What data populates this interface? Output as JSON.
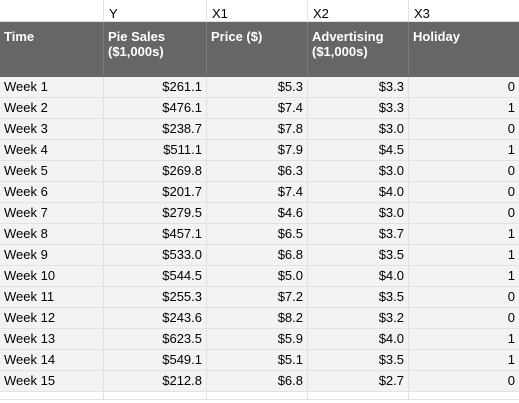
{
  "var_labels": [
    "",
    "Y",
    "X1",
    "X2",
    "X3"
  ],
  "headers": [
    "Time",
    "Pie Sales ($1,000s)",
    "Price ($)",
    "Advertising ($1,000s)",
    "Holiday"
  ],
  "rows": [
    [
      "Week 1",
      "$261.1",
      "$5.3",
      "$3.3",
      "0"
    ],
    [
      "Week 2",
      "$476.1",
      "$7.4",
      "$3.3",
      "1"
    ],
    [
      "Week 3",
      "$238.7",
      "$7.8",
      "$3.0",
      "0"
    ],
    [
      "Week 4",
      "$511.1",
      "$7.9",
      "$4.5",
      "1"
    ],
    [
      "Week 5",
      "$269.8",
      "$6.3",
      "$3.0",
      "0"
    ],
    [
      "Week 6",
      "$201.7",
      "$7.4",
      "$4.0",
      "0"
    ],
    [
      "Week 7",
      "$279.5",
      "$4.6",
      "$3.0",
      "0"
    ],
    [
      "Week 8",
      "$457.1",
      "$6.5",
      "$3.7",
      "1"
    ],
    [
      "Week 9",
      "$533.0",
      "$6.8",
      "$3.5",
      "1"
    ],
    [
      "Week 10",
      "$544.5",
      "$5.0",
      "$4.0",
      "1"
    ],
    [
      "Week 11",
      "$255.3",
      "$7.2",
      "$3.5",
      "0"
    ],
    [
      "Week 12",
      "$243.6",
      "$8.2",
      "$3.2",
      "0"
    ],
    [
      "Week 13",
      "$623.5",
      "$5.9",
      "$4.0",
      "1"
    ],
    [
      "Week 14",
      "$549.1",
      "$5.1",
      "$3.5",
      "1"
    ],
    [
      "Week 15",
      "$212.8",
      "$6.8",
      "$2.7",
      "0"
    ]
  ]
}
